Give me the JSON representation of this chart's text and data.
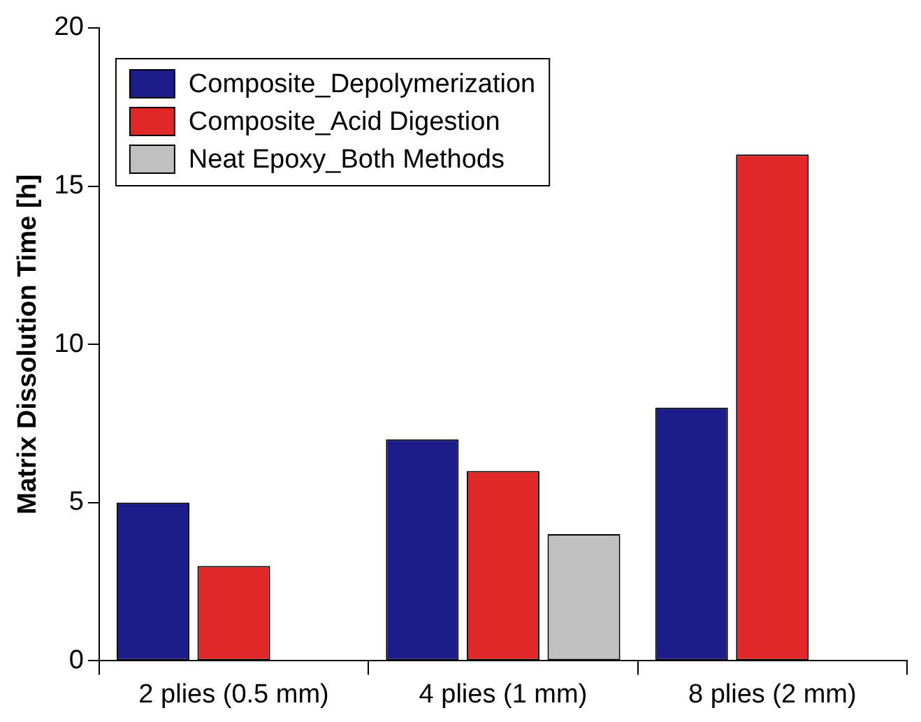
{
  "chart_data": {
    "type": "bar",
    "ylabel": "Matrix Dissolution Time [h]",
    "categories": [
      "2 plies (0.5 mm)",
      "4 plies (1 mm)",
      "8 plies (2 mm)"
    ],
    "series": [
      {
        "name": "Composite_Depolymerization",
        "color": "#1c1c8a",
        "values": [
          5,
          7,
          8
        ]
      },
      {
        "name": "Composite_Acid Digestion",
        "color": "#e02828",
        "values": [
          3,
          6,
          16
        ]
      },
      {
        "name": "Neat Epoxy_Both Methods",
        "color": "#c0c0c0",
        "values": [
          null,
          4,
          null
        ]
      }
    ],
    "ylim": [
      0,
      20
    ],
    "yticks": [
      0,
      5,
      10,
      15,
      20
    ],
    "grid": false,
    "legend": "top left"
  }
}
